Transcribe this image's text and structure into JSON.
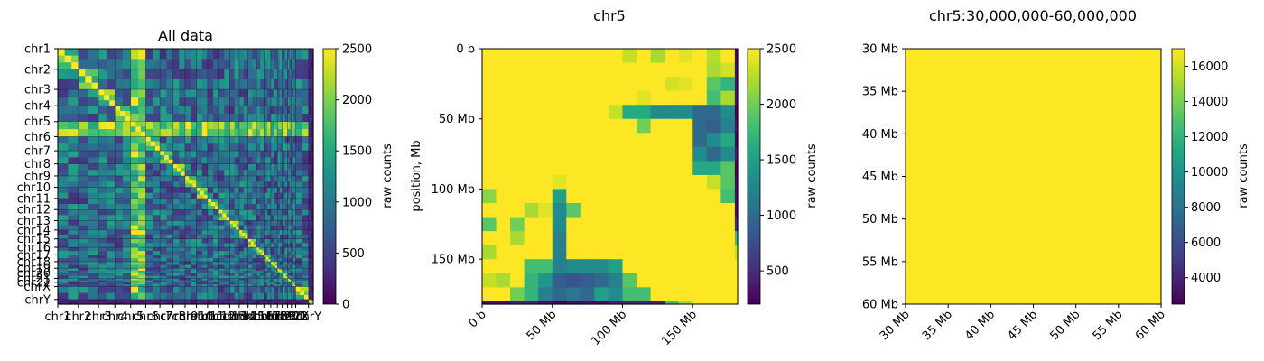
{
  "chart_data": [
    {
      "type": "heatmap",
      "title": "All data",
      "colorbar": {
        "label": "raw counts",
        "range": [
          0,
          2500
        ],
        "ticks": [
          "0",
          "500",
          "1000",
          "1500",
          "2000",
          "2500"
        ]
      },
      "chromosomes": [
        "chr1",
        "chr2",
        "chr3",
        "chr4",
        "chr5",
        "chr6",
        "chr7",
        "chr8",
        "chr9",
        "chr10",
        "chr11",
        "chr12",
        "chr13",
        "chr14",
        "chr15",
        "chr16",
        "chr17",
        "chr18",
        "chr19",
        "chr20",
        "chr21",
        "chr22",
        "chrX",
        "chrY"
      ],
      "chrom_lengths_mb": [
        249,
        243,
        198,
        191,
        182,
        171,
        159,
        145,
        138,
        134,
        135,
        133,
        114,
        107,
        102,
        90,
        83,
        80,
        59,
        64,
        47,
        51,
        156,
        57
      ],
      "y_tick_labels": [
        "chr1",
        "chr2",
        "chr3",
        "chr4",
        "chr5",
        "chr6",
        "chr7",
        "chr8",
        "chr9",
        "chr10",
        "chr11",
        "chr12",
        "chr13",
        "chr14",
        "chr15",
        "chr16",
        "chr17",
        "chr18",
        "chr19",
        "chr20",
        "chr21",
        "chr22",
        "chrX",
        "chrY"
      ],
      "x_tick_labels": [
        "chr1",
        "chr2",
        "chr3",
        "chr4",
        "chr5",
        "chr6",
        "chr7",
        "chr8",
        "chr9",
        "chr10",
        "chr11",
        "chr12",
        "chr13",
        "chr14",
        "chr15",
        "chr16",
        "chr17",
        "chr18",
        "chr19",
        "chr20",
        "chr21",
        "chr22",
        "chrX",
        "chrY"
      ]
    },
    {
      "type": "heatmap",
      "title": "chr5",
      "ylabel": "position, Mb",
      "colorbar": {
        "label": "raw counts",
        "range": [
          200,
          2500
        ],
        "ticks": [
          "500",
          "1000",
          "1500",
          "2000",
          "2500"
        ]
      },
      "extent_mb": [
        0,
        182
      ],
      "bin_size_mb": 10,
      "x_ticks": [
        {
          "value": 0,
          "label": "0 b"
        },
        {
          "value": 50,
          "label": "50 Mb"
        },
        {
          "value": 100,
          "label": "100 Mb"
        },
        {
          "value": 150,
          "label": "150 Mb"
        }
      ],
      "y_ticks": [
        {
          "value": 0,
          "label": "0 b"
        },
        {
          "value": 50,
          "label": "50 Mb"
        },
        {
          "value": 100,
          "label": "100 Mb"
        },
        {
          "value": 150,
          "label": "150 Mb"
        }
      ],
      "matrix": [
        [
          2500,
          2500,
          2500,
          2500,
          2500,
          2500,
          2500,
          2500,
          2500,
          2500,
          2300,
          2500,
          2200,
          2500,
          2400,
          2500,
          2250,
          2500,
          250
        ],
        [
          2500,
          2500,
          2500,
          2500,
          2500,
          2500,
          2500,
          2500,
          2500,
          2500,
          2500,
          2500,
          2500,
          2500,
          2500,
          2500,
          2200,
          2350,
          300
        ],
        [
          2500,
          2500,
          2500,
          2500,
          2500,
          2500,
          2500,
          2500,
          2500,
          2500,
          2500,
          2500,
          2500,
          2350,
          2400,
          2500,
          1900,
          1700,
          350
        ],
        [
          2500,
          2500,
          2500,
          2500,
          2500,
          2500,
          2500,
          2500,
          2500,
          2500,
          2500,
          2400,
          2500,
          2500,
          2500,
          2500,
          1800,
          2200,
          350
        ],
        [
          2500,
          2500,
          2500,
          2500,
          2500,
          2500,
          2500,
          2500,
          2500,
          2300,
          1600,
          1600,
          1300,
          1300,
          1300,
          1000,
          1000,
          1300,
          200
        ],
        [
          2500,
          2500,
          2500,
          2500,
          2500,
          2500,
          2500,
          2500,
          2500,
          2500,
          2500,
          2000,
          2500,
          2500,
          2500,
          1000,
          900,
          1200,
          350
        ],
        [
          2500,
          2500,
          2500,
          2500,
          2500,
          2500,
          2500,
          2500,
          2500,
          2500,
          2500,
          2500,
          2500,
          2500,
          2500,
          1000,
          1300,
          1600,
          250
        ],
        [
          2500,
          2500,
          2500,
          2500,
          2500,
          2500,
          2500,
          2500,
          2500,
          2500,
          2500,
          2500,
          2500,
          2500,
          2500,
          1300,
          1000,
          1300,
          400
        ],
        [
          2500,
          2500,
          2500,
          2500,
          2500,
          2500,
          2500,
          2500,
          2500,
          2500,
          2500,
          2500,
          2500,
          2500,
          2500,
          1600,
          1600,
          1900,
          200
        ],
        [
          2500,
          2500,
          2500,
          2500,
          2500,
          2400,
          2500,
          2500,
          2500,
          2500,
          2500,
          2500,
          2500,
          2500,
          2500,
          2500,
          2300,
          1900,
          300
        ],
        [
          2100,
          2500,
          2500,
          2500,
          2500,
          1500,
          2500,
          2500,
          2500,
          2500,
          2500,
          2500,
          2500,
          2500,
          2500,
          2500,
          2500,
          1800,
          300
        ],
        [
          2500,
          2500,
          2500,
          2200,
          2400,
          1300,
          1900,
          2500,
          2500,
          2500,
          2500,
          2500,
          2500,
          2500,
          2500,
          2500,
          2500,
          2500,
          300
        ],
        [
          1900,
          2500,
          2000,
          2500,
          2500,
          1300,
          2500,
          2500,
          2500,
          2500,
          2500,
          2500,
          2500,
          2500,
          2500,
          2500,
          2500,
          2500,
          500
        ],
        [
          2500,
          2500,
          2200,
          2500,
          2500,
          1200,
          2500,
          2500,
          2500,
          2500,
          2500,
          2500,
          2500,
          2500,
          2500,
          2500,
          2500,
          2500,
          1800
        ],
        [
          2200,
          2500,
          2500,
          2500,
          2500,
          1200,
          2500,
          2500,
          2500,
          2500,
          2500,
          2500,
          2500,
          2500,
          2500,
          2500,
          2500,
          2500,
          2300
        ],
        [
          2500,
          2500,
          2500,
          1800,
          1800,
          1200,
          1300,
          1300,
          1300,
          1500,
          2500,
          2500,
          2500,
          2500,
          2500,
          2500,
          2500,
          2500,
          2500
        ],
        [
          2300,
          2200,
          2500,
          1700,
          1400,
          900,
          800,
          900,
          1000,
          1200,
          1900,
          2500,
          2500,
          2500,
          2500,
          2500,
          2500,
          2500,
          2500
        ],
        [
          2500,
          2500,
          2000,
          1700,
          1200,
          1000,
          1100,
          1000,
          1500,
          1300,
          1800,
          1800,
          2500,
          2500,
          2500,
          2500,
          2500,
          2500,
          2500
        ],
        [
          300,
          300,
          400,
          400,
          300,
          200,
          300,
          300,
          250,
          400,
          400,
          400,
          400,
          1800,
          2200,
          2500,
          2500,
          2500,
          2500
        ]
      ]
    },
    {
      "type": "heatmap",
      "title": "chr5:30,000,000-60,000,000",
      "colorbar": {
        "label": "raw counts",
        "range": [
          2500,
          17000
        ],
        "ticks": [
          "4000",
          "6000",
          "8000",
          "10000",
          "12000",
          "14000",
          "16000"
        ]
      },
      "extent_mb": [
        30,
        60
      ],
      "matrix_value": 17000,
      "x_ticks": [
        {
          "value": 30,
          "label": "30 Mb"
        },
        {
          "value": 35,
          "label": "35 Mb"
        },
        {
          "value": 40,
          "label": "40 Mb"
        },
        {
          "value": 45,
          "label": "45 Mb"
        },
        {
          "value": 50,
          "label": "50 Mb"
        },
        {
          "value": 55,
          "label": "55 Mb"
        },
        {
          "value": 60,
          "label": "60 Mb"
        }
      ],
      "y_ticks": [
        {
          "value": 30,
          "label": "30 Mb"
        },
        {
          "value": 35,
          "label": "35 Mb"
        },
        {
          "value": 40,
          "label": "40 Mb"
        },
        {
          "value": 45,
          "label": "45 Mb"
        },
        {
          "value": 50,
          "label": "50 Mb"
        },
        {
          "value": 55,
          "label": "55 Mb"
        },
        {
          "value": 60,
          "label": "60 Mb"
        }
      ]
    }
  ]
}
